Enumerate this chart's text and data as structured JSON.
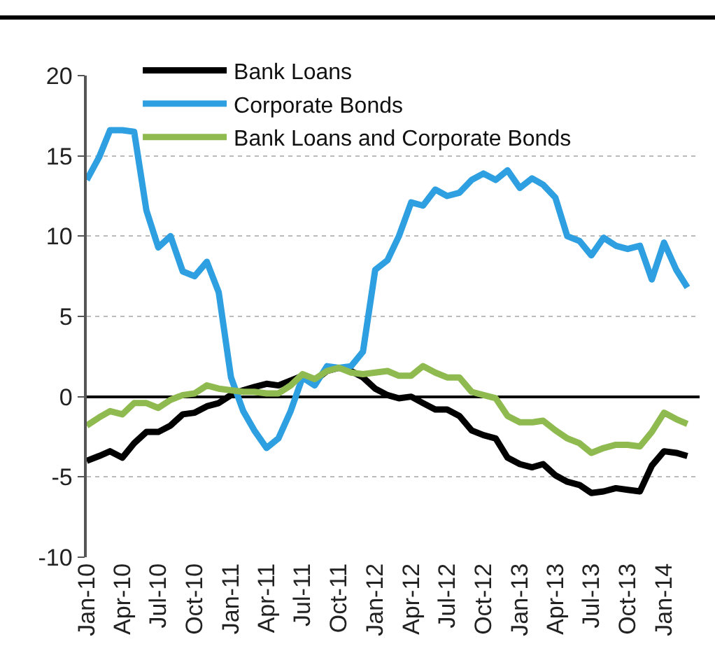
{
  "chart_data": {
    "type": "line",
    "x": [
      "2010-01",
      "2010-02",
      "2010-03",
      "2010-04",
      "2010-05",
      "2010-06",
      "2010-07",
      "2010-08",
      "2010-09",
      "2010-10",
      "2010-11",
      "2010-12",
      "2011-01",
      "2011-02",
      "2011-03",
      "2011-04",
      "2011-05",
      "2011-06",
      "2011-07",
      "2011-08",
      "2011-09",
      "2011-10",
      "2011-11",
      "2011-12",
      "2012-01",
      "2012-02",
      "2012-03",
      "2012-04",
      "2012-05",
      "2012-06",
      "2012-07",
      "2012-08",
      "2012-09",
      "2012-10",
      "2012-11",
      "2012-12",
      "2013-01",
      "2013-02",
      "2013-03",
      "2013-04",
      "2013-05",
      "2013-06",
      "2013-07",
      "2013-08",
      "2013-09",
      "2013-10",
      "2013-11",
      "2013-12",
      "2014-01",
      "2014-02",
      "2014-03"
    ],
    "series": [
      {
        "name": "Bank Loans",
        "color": "#000000",
        "values": [
          -4.0,
          -3.7,
          -3.4,
          -3.8,
          -2.9,
          -2.2,
          -2.2,
          -1.8,
          -1.1,
          -1.0,
          -0.6,
          -0.4,
          0.1,
          0.4,
          0.6,
          0.8,
          0.7,
          1.0,
          1.3,
          1.0,
          1.6,
          1.8,
          1.6,
          1.2,
          0.5,
          0.1,
          -0.1,
          0.0,
          -0.4,
          -0.8,
          -0.8,
          -1.2,
          -2.1,
          -2.4,
          -2.6,
          -3.8,
          -4.2,
          -4.4,
          -4.2,
          -4.9,
          -5.3,
          -5.5,
          -6.0,
          -5.9,
          -5.7,
          -5.8,
          -5.9,
          -4.3,
          -3.4,
          -3.5,
          -3.7
        ]
      },
      {
        "name": "Corporate Bonds",
        "color": "#2e9fe0",
        "values": [
          13.5,
          14.9,
          16.6,
          16.6,
          16.5,
          11.6,
          9.3,
          10.0,
          7.8,
          7.5,
          8.4,
          6.5,
          1.2,
          -0.9,
          -2.1,
          -3.2,
          -2.6,
          -0.9,
          1.2,
          0.7,
          1.9,
          1.8,
          1.9,
          2.8,
          7.9,
          8.5,
          10.0,
          12.1,
          11.9,
          12.9,
          12.5,
          12.7,
          13.5,
          13.9,
          13.5,
          14.1,
          13.0,
          13.6,
          13.2,
          12.4,
          10.0,
          9.7,
          8.8,
          9.9,
          9.4,
          9.2,
          9.4,
          7.3,
          9.6,
          7.9,
          6.8
        ]
      },
      {
        "name": "Bank Loans and Corporate Bonds",
        "color": "#8fba4f",
        "values": [
          -1.8,
          -1.3,
          -0.9,
          -1.1,
          -0.4,
          -0.4,
          -0.7,
          -0.2,
          0.1,
          0.2,
          0.7,
          0.5,
          0.4,
          0.3,
          0.3,
          0.2,
          0.2,
          0.7,
          1.4,
          1.1,
          1.6,
          1.8,
          1.5,
          1.4,
          1.5,
          1.6,
          1.3,
          1.3,
          1.9,
          1.5,
          1.2,
          1.2,
          0.3,
          0.1,
          -0.1,
          -1.2,
          -1.6,
          -1.6,
          -1.5,
          -2.1,
          -2.6,
          -2.9,
          -3.5,
          -3.2,
          -3.0,
          -3.0,
          -3.1,
          -2.2,
          -1.0,
          -1.4,
          -1.7
        ]
      }
    ],
    "xlim": [
      "2010-01-01",
      "2014-04-01"
    ],
    "xticks": [
      {
        "value": "2010-01",
        "label": "Jan-10"
      },
      {
        "value": "2010-04",
        "label": "Apr-10"
      },
      {
        "value": "2010-07",
        "label": "Jul-10"
      },
      {
        "value": "2010-10",
        "label": "Oct-10"
      },
      {
        "value": "2011-01",
        "label": "Jan-11"
      },
      {
        "value": "2011-04",
        "label": "Apr-11"
      },
      {
        "value": "2011-07",
        "label": "Jul-11"
      },
      {
        "value": "2011-10",
        "label": "Oct-11"
      },
      {
        "value": "2012-01",
        "label": "Jan-12"
      },
      {
        "value": "2012-04",
        "label": "Apr-12"
      },
      {
        "value": "2012-07",
        "label": "Jul-12"
      },
      {
        "value": "2012-10",
        "label": "Oct-12"
      },
      {
        "value": "2013-01",
        "label": "Jan-13"
      },
      {
        "value": "2013-04",
        "label": "Apr-13"
      },
      {
        "value": "2013-07",
        "label": "Jul-13"
      },
      {
        "value": "2013-10",
        "label": "Oct-13"
      },
      {
        "value": "2014-01",
        "label": "Jan-14"
      }
    ],
    "ylim": [
      -10,
      20
    ],
    "yticks": [
      -10,
      -5,
      0,
      5,
      10,
      15,
      20
    ],
    "grid": "y",
    "legend": "top left",
    "marker": "none",
    "line_style": "solid"
  }
}
